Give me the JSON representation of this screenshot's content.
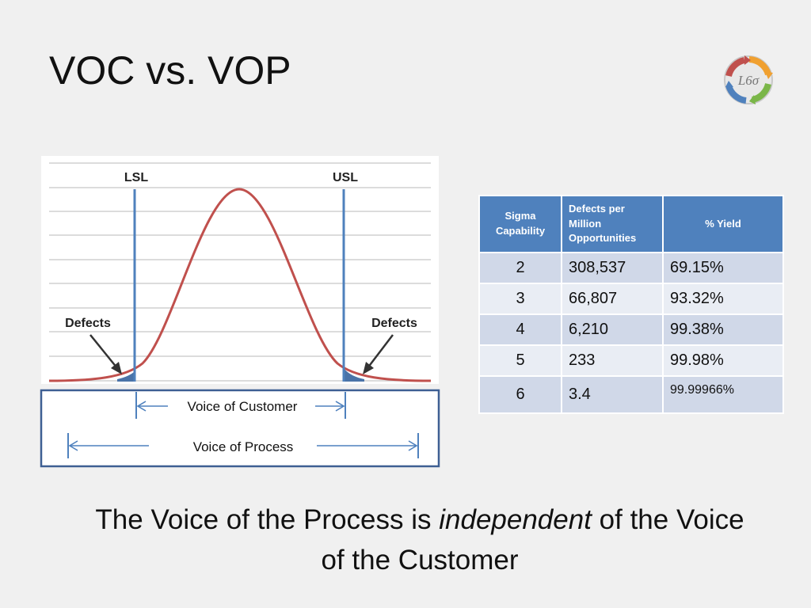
{
  "slide": {
    "title": "VOC vs. VOP",
    "statement_prefix": "The Voice of the Process is ",
    "statement_emphasis": "independent",
    "statement_suffix": " of the Voice of the Customer"
  },
  "logo": {
    "text": "L6σ",
    "icon": "cycle-arrows-logo"
  },
  "figure": {
    "lsl_label": "LSL",
    "usl_label": "USL",
    "defects_left": "Defects",
    "defects_right": "Defects",
    "voc_label": "Voice of Customer",
    "vop_label": "Voice of Process",
    "colors": {
      "curve": "#c0504d",
      "limits": "#4f81bd",
      "frame": "#3e5f93",
      "tail": "#4a73a8"
    }
  },
  "table": {
    "headers": [
      "Sigma Capability",
      "Defects per Million Opportunities",
      "% Yield"
    ],
    "rows": [
      [
        "2",
        "308,537",
        "69.15%"
      ],
      [
        "3",
        "66,807",
        "93.32%"
      ],
      [
        "4",
        "6,210",
        "99.38%"
      ],
      [
        "5",
        "233",
        "99.98%"
      ],
      [
        "6",
        "3.4",
        "99.99966%"
      ]
    ],
    "colors": {
      "header": "#4f81bd",
      "row_odd": "#d0d8e8",
      "row_even": "#e9edf4"
    }
  }
}
